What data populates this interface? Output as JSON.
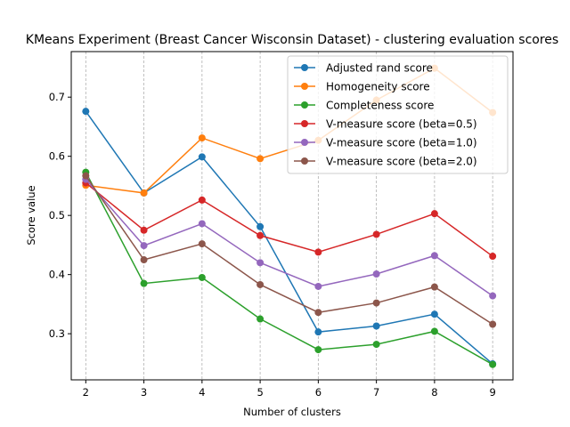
{
  "chart_data": {
    "type": "line",
    "title": "KMeans Experiment (Breast Cancer Wisconsin Dataset) - clustering evaluation scores",
    "xlabel": "Number of clusters",
    "ylabel": "Score value",
    "x": [
      2,
      3,
      4,
      5,
      6,
      7,
      8,
      9
    ],
    "xlim": [
      1.75,
      9.35
    ],
    "ylim": [
      0.222,
      0.777
    ],
    "xticks": [
      2,
      3,
      4,
      5,
      6,
      7,
      8,
      9
    ],
    "yticks": [
      0.3,
      0.4,
      0.5,
      0.6,
      0.7
    ],
    "ytick_labels": [
      "0.3",
      "0.4",
      "0.5",
      "0.6",
      "0.7"
    ],
    "grid": "vertical dashed",
    "legend_position": "top-right",
    "series": [
      {
        "name": "Adjusted rand score",
        "color": "#1f77b4",
        "values": [
          0.676,
          0.538,
          0.599,
          0.481,
          0.303,
          0.313,
          0.333,
          0.249
        ]
      },
      {
        "name": "Homogeneity score",
        "color": "#ff7f0e",
        "values": [
          0.551,
          0.538,
          0.631,
          0.596,
          0.627,
          0.695,
          0.749,
          0.674
        ]
      },
      {
        "name": "Completeness score",
        "color": "#2ca02c",
        "values": [
          0.573,
          0.385,
          0.395,
          0.325,
          0.273,
          0.282,
          0.304,
          0.248
        ]
      },
      {
        "name": "V-measure score (beta=0.5)",
        "color": "#d62728",
        "values": [
          0.555,
          0.475,
          0.526,
          0.466,
          0.438,
          0.468,
          0.503,
          0.431
        ]
      },
      {
        "name": "V-measure score (beta=1.0)",
        "color": "#9467bd",
        "values": [
          0.561,
          0.449,
          0.486,
          0.42,
          0.38,
          0.401,
          0.432,
          0.364
        ]
      },
      {
        "name": "V-measure score (beta=2.0)",
        "color": "#8c564b",
        "values": [
          0.567,
          0.425,
          0.452,
          0.383,
          0.336,
          0.352,
          0.379,
          0.316
        ]
      }
    ]
  }
}
